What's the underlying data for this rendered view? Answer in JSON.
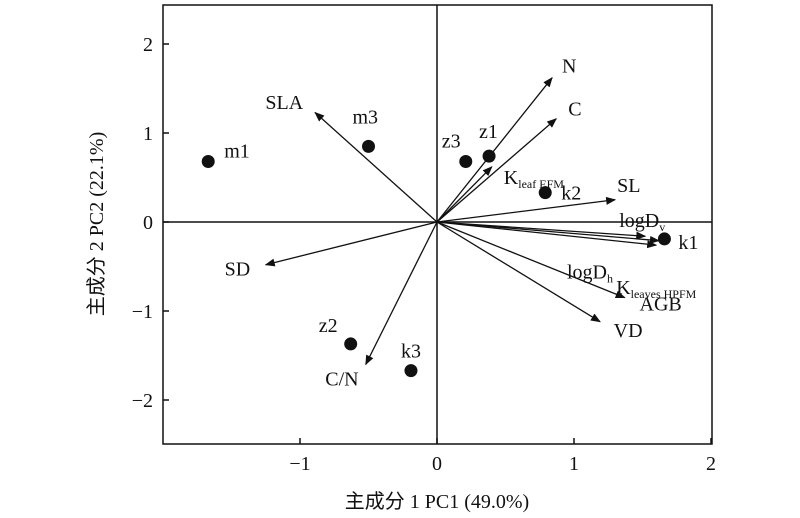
{
  "chart_data": {
    "type": "scatter",
    "subtype": "pca-biplot",
    "title": "",
    "xlabel": "主成分 1 PC1 (49.0%)",
    "ylabel": "主成分 2 PC2 (22.1%)",
    "xlim": [
      -2.0,
      2.0
    ],
    "ylim": [
      -2.5,
      2.5
    ],
    "x_ticks": [
      {
        "value": -1,
        "label": "−1"
      },
      {
        "value": 0,
        "label": "0"
      },
      {
        "value": 1,
        "label": "1"
      },
      {
        "value": 2,
        "label": "2"
      }
    ],
    "y_ticks": [
      {
        "value": -2,
        "label": "−2"
      },
      {
        "value": -1,
        "label": "−1"
      },
      {
        "value": 0,
        "label": "0"
      },
      {
        "value": 1,
        "label": "1"
      },
      {
        "value": 2,
        "label": "2"
      }
    ],
    "grid": false,
    "points": [
      {
        "label": "m1",
        "x": -1.67,
        "y": 0.68
      },
      {
        "label": "m3",
        "x": -0.5,
        "y": 0.85
      },
      {
        "label": "z3",
        "x": 0.21,
        "y": 0.68
      },
      {
        "label": "z1",
        "x": 0.38,
        "y": 0.74
      },
      {
        "label": "k2",
        "x": 0.79,
        "y": 0.33
      },
      {
        "label": "k1",
        "x": 1.66,
        "y": -0.19
      },
      {
        "label": "z2",
        "x": -0.63,
        "y": -1.37
      },
      {
        "label": "k3",
        "x": -0.19,
        "y": -1.67
      }
    ],
    "loadings": [
      {
        "main": "N",
        "sub": "",
        "x": 0.84,
        "y": 1.62
      },
      {
        "main": "C",
        "sub": "",
        "x": 0.87,
        "y": 1.16
      },
      {
        "main": "K",
        "sub": "leaf EFM",
        "x": 0.4,
        "y": 0.62
      },
      {
        "main": "SLA",
        "sub": "",
        "x": -0.89,
        "y": 1.23
      },
      {
        "main": "SD",
        "sub": "",
        "x": -1.25,
        "y": -0.48
      },
      {
        "main": "C/N",
        "sub": "",
        "x": -0.52,
        "y": -1.6
      },
      {
        "main": "SL",
        "sub": "",
        "x": 1.3,
        "y": 0.25
      },
      {
        "main": "logD",
        "sub": "v",
        "x": 1.52,
        "y": -0.16
      },
      {
        "main": "logD",
        "sub": "h",
        "x": 1.62,
        "y": -0.21
      },
      {
        "main": "K",
        "sub": "leaves HPFM",
        "x": 1.6,
        "y": -0.26
      },
      {
        "main": "AGB",
        "sub": "",
        "x": 1.37,
        "y": -0.85
      },
      {
        "main": "VD",
        "sub": "",
        "x": 1.19,
        "y": -1.12
      }
    ]
  }
}
